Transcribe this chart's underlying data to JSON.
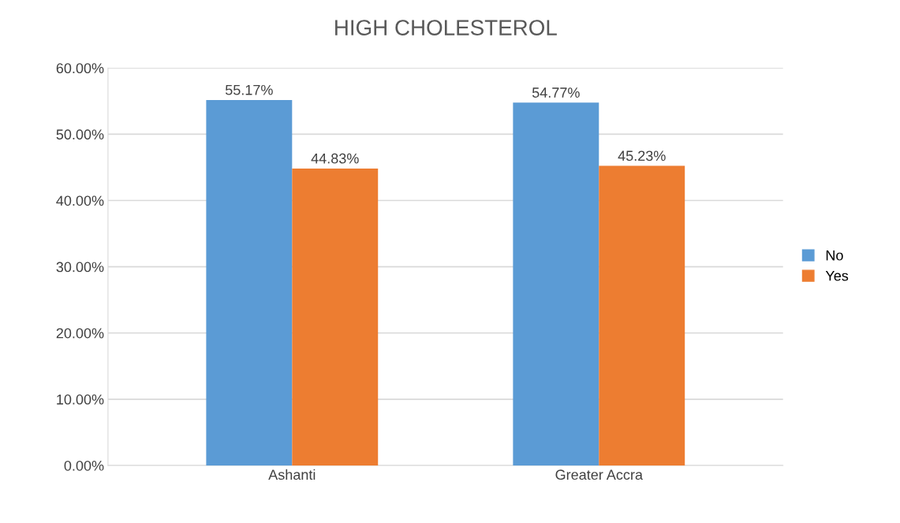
{
  "chart_data": {
    "type": "bar",
    "title": "HIGH CHOLESTEROL",
    "categories": [
      "Ashanti",
      "Greater Accra"
    ],
    "series": [
      {
        "name": "No",
        "color": "#5b9bd5",
        "values": [
          55.17,
          54.77
        ],
        "value_labels": [
          "55.17%",
          "54.77%"
        ]
      },
      {
        "name": "Yes",
        "color": "#ed7d31",
        "values": [
          44.83,
          45.23
        ],
        "value_labels": [
          "44.83%",
          "45.23%"
        ]
      }
    ],
    "ylim": [
      0,
      60
    ],
    "yticks": [
      {
        "value": 0,
        "label": "0.00%"
      },
      {
        "value": 10,
        "label": "10.00%"
      },
      {
        "value": 20,
        "label": "20.00%"
      },
      {
        "value": 30,
        "label": "30.00%"
      },
      {
        "value": 40,
        "label": "40.00%"
      },
      {
        "value": 50,
        "label": "50.00%"
      },
      {
        "value": 60,
        "label": "60.00%"
      }
    ],
    "grid": "y",
    "legend": "right"
  }
}
